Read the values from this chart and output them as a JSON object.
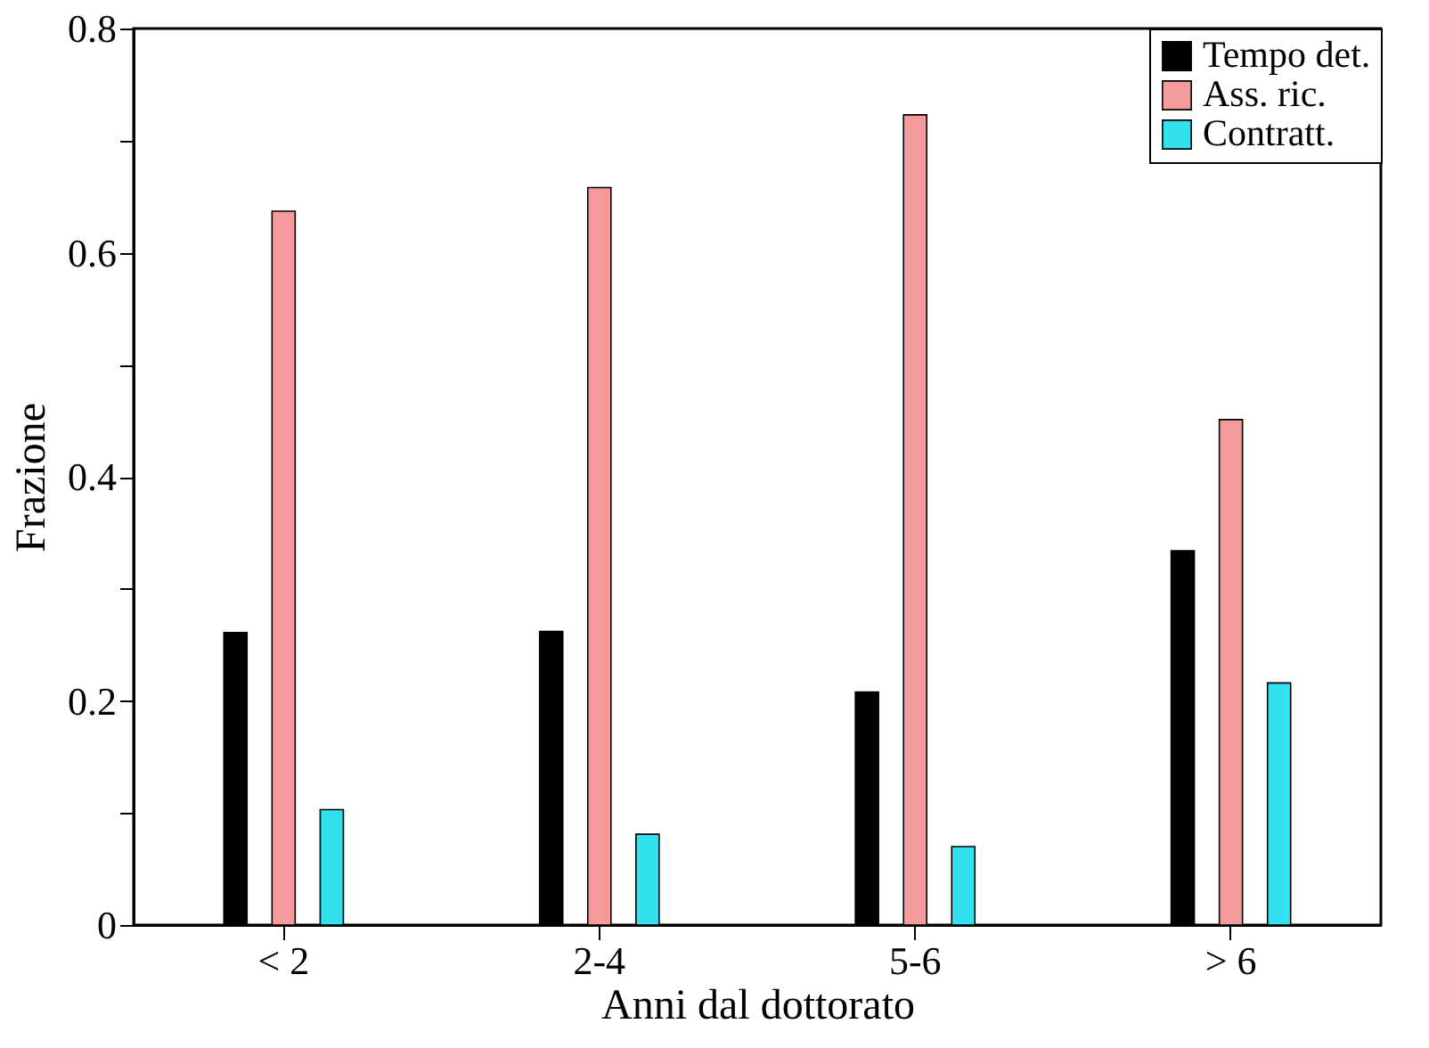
{
  "chart_data": {
    "type": "bar",
    "xlabel": "Anni dal dottorato",
    "ylabel": "Frazione",
    "categories": [
      "< 2",
      "2-4",
      "5-6",
      "> 6"
    ],
    "series": [
      {
        "name": "Tempo det.",
        "color": "#000000",
        "values": [
          0.261,
          0.262,
          0.208,
          0.334
        ]
      },
      {
        "name": "Ass. ric.",
        "color": "#f49a9a",
        "values": [
          0.637,
          0.658,
          0.723,
          0.451
        ]
      },
      {
        "name": "Contratt.",
        "color": "#33e0ee",
        "values": [
          0.103,
          0.081,
          0.07,
          0.216
        ]
      }
    ],
    "ylim": [
      0,
      0.8
    ],
    "yticks": [
      0,
      {
        "value": 0.1,
        "label": null
      },
      0.2,
      {
        "value": 0.3,
        "label": null
      },
      0.4,
      {
        "value": 0.5,
        "label": null
      },
      0.6,
      {
        "value": 0.7,
        "label": null
      },
      0.8
    ],
    "grid": false,
    "legend": "top right"
  }
}
